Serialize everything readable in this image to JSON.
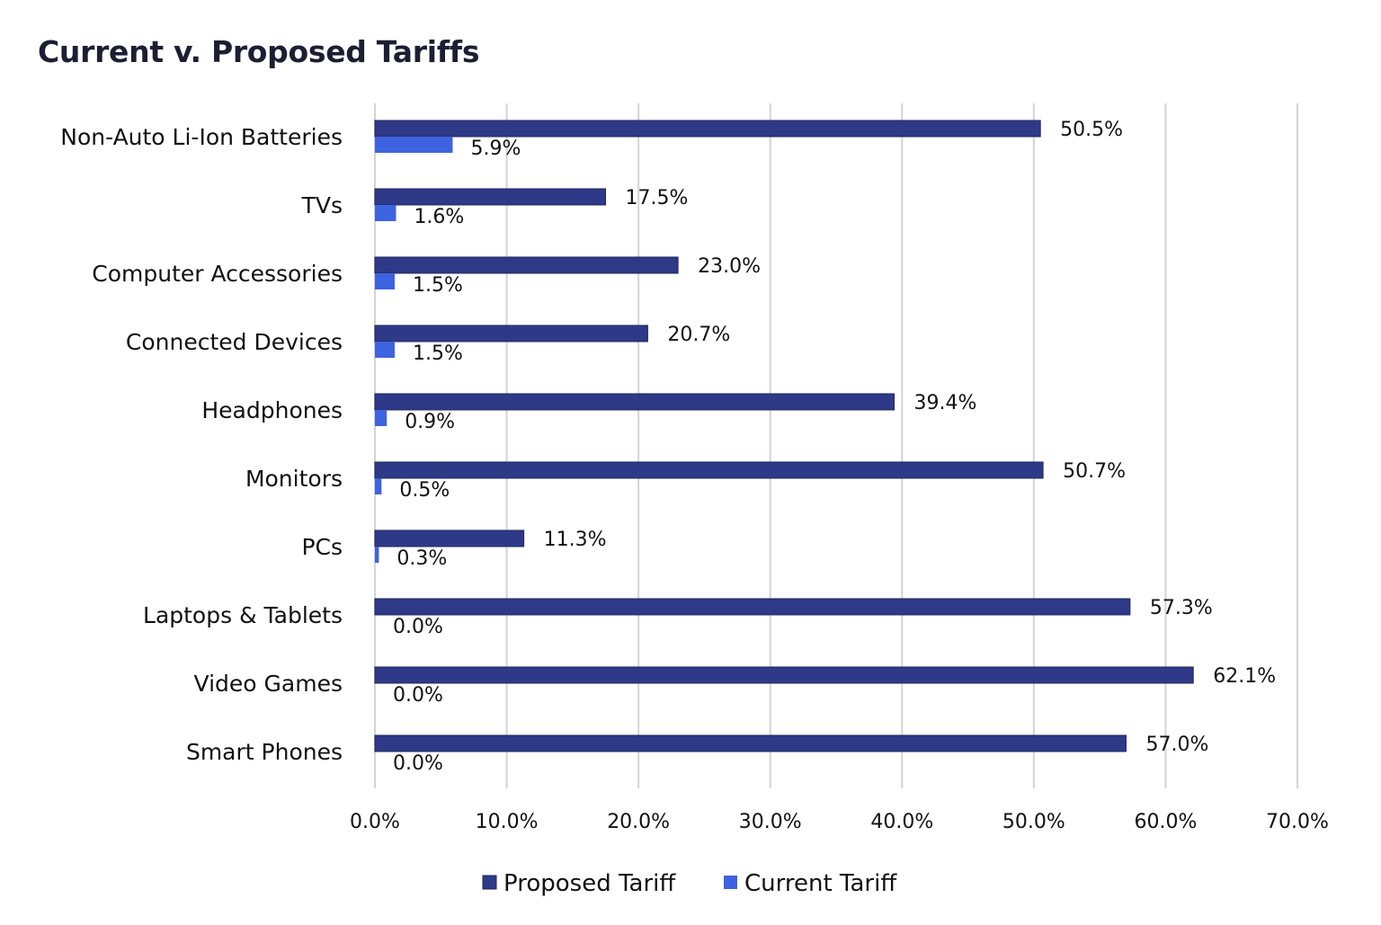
{
  "chart_data": {
    "type": "bar",
    "orientation": "horizontal",
    "title": "Current v. Proposed Tariffs",
    "xlabel": "",
    "ylabel": "",
    "categories": [
      "Non-Auto Li-Ion Batteries",
      "TVs",
      "Computer Accessories",
      "Connected Devices",
      "Headphones",
      "Monitors",
      "PCs",
      "Laptops & Tablets",
      "Video Games",
      "Smart Phones"
    ],
    "series": [
      {
        "name": "Proposed Tariff",
        "color": "#2e3a87",
        "values": [
          50.5,
          17.5,
          23.0,
          20.7,
          39.4,
          50.7,
          11.3,
          57.3,
          62.1,
          57.0
        ],
        "labels": [
          "50.5%",
          "17.5%",
          "23.0%",
          "20.7%",
          "39.4%",
          "50.7%",
          "11.3%",
          "57.3%",
          "62.1%",
          "57.0%"
        ]
      },
      {
        "name": "Current Tariff",
        "color": "#3d63e0",
        "values": [
          5.9,
          1.6,
          1.5,
          1.5,
          0.9,
          0.5,
          0.3,
          0.0,
          0.0,
          0.0
        ],
        "labels": [
          "5.9%",
          "1.6%",
          "1.5%",
          "1.5%",
          "0.9%",
          "0.5%",
          "0.3%",
          "0.0%",
          "0.0%",
          "0.0%"
        ]
      }
    ],
    "xlim": [
      0,
      70
    ],
    "xticks": [
      0,
      10,
      20,
      30,
      40,
      50,
      60,
      70
    ],
    "xtick_labels": [
      "0.0%",
      "10.0%",
      "20.0%",
      "30.0%",
      "40.0%",
      "50.0%",
      "60.0%",
      "70.0%"
    ],
    "grid": "vertical",
    "legend_position": "bottom"
  }
}
